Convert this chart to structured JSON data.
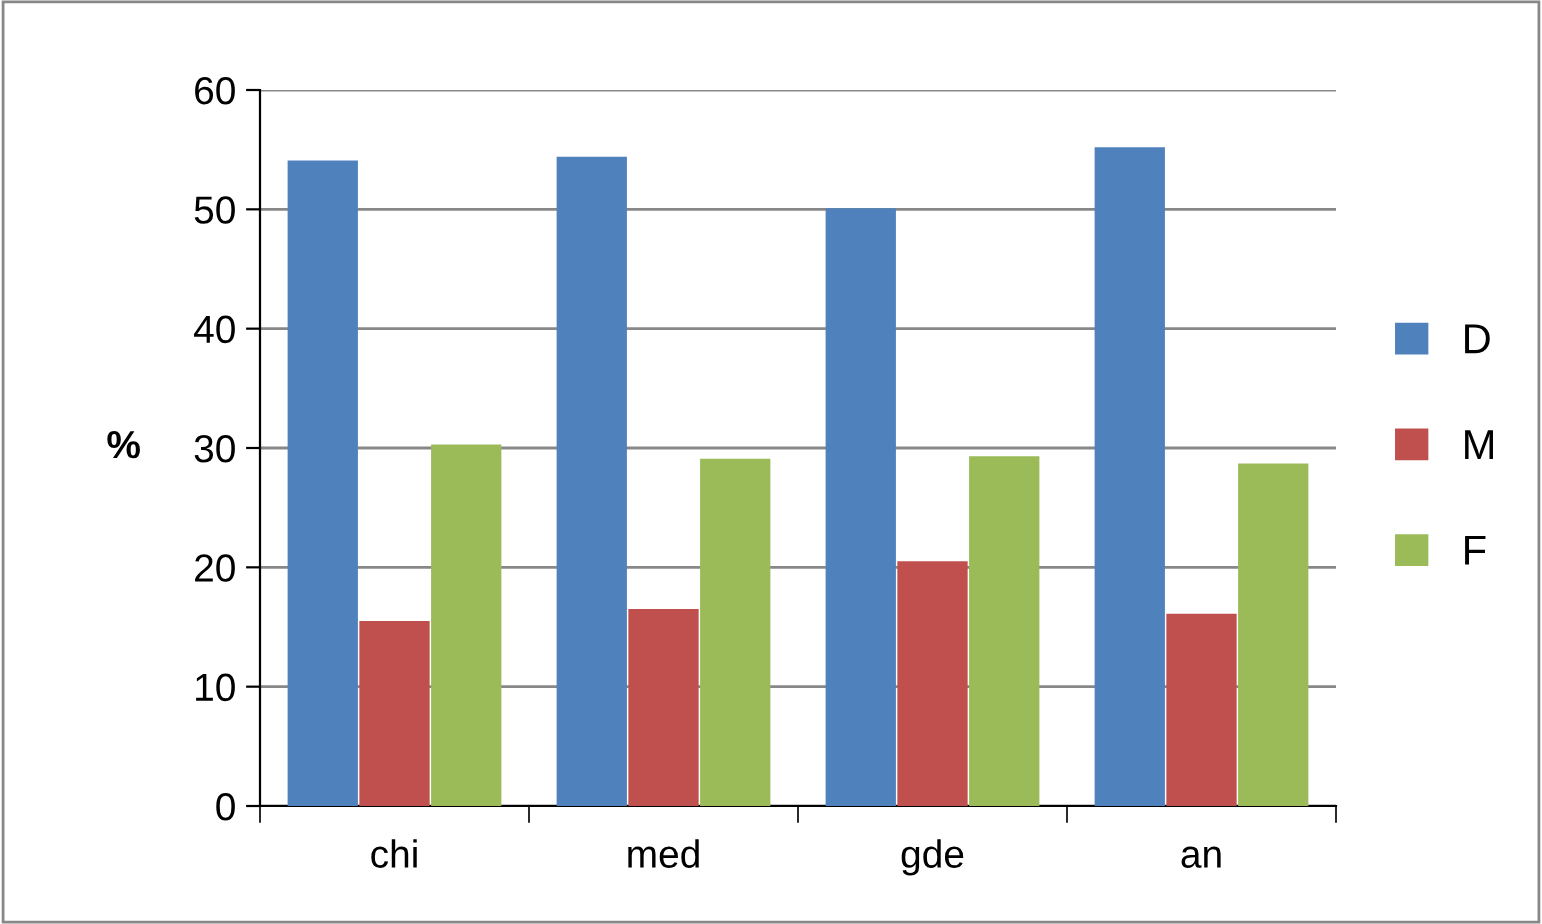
{
  "chart_data": {
    "type": "bar",
    "ylabel": "%",
    "categories": [
      "chi",
      "med",
      "gde",
      "an"
    ],
    "series": [
      {
        "name": "D",
        "color": "#4f81bd",
        "values": [
          54.1,
          54.4,
          50.1,
          55.2
        ]
      },
      {
        "name": "M",
        "color": "#c0504d",
        "values": [
          15.5,
          16.5,
          20.5,
          16.1
        ]
      },
      {
        "name": "F",
        "color": "#9bbb59",
        "values": [
          30.3,
          29.1,
          29.3,
          28.7
        ]
      }
    ],
    "ylim": [
      0,
      60
    ],
    "yticks": [
      0,
      10,
      20,
      30,
      40,
      50,
      60
    ],
    "grid": "y",
    "legend": "right"
  }
}
